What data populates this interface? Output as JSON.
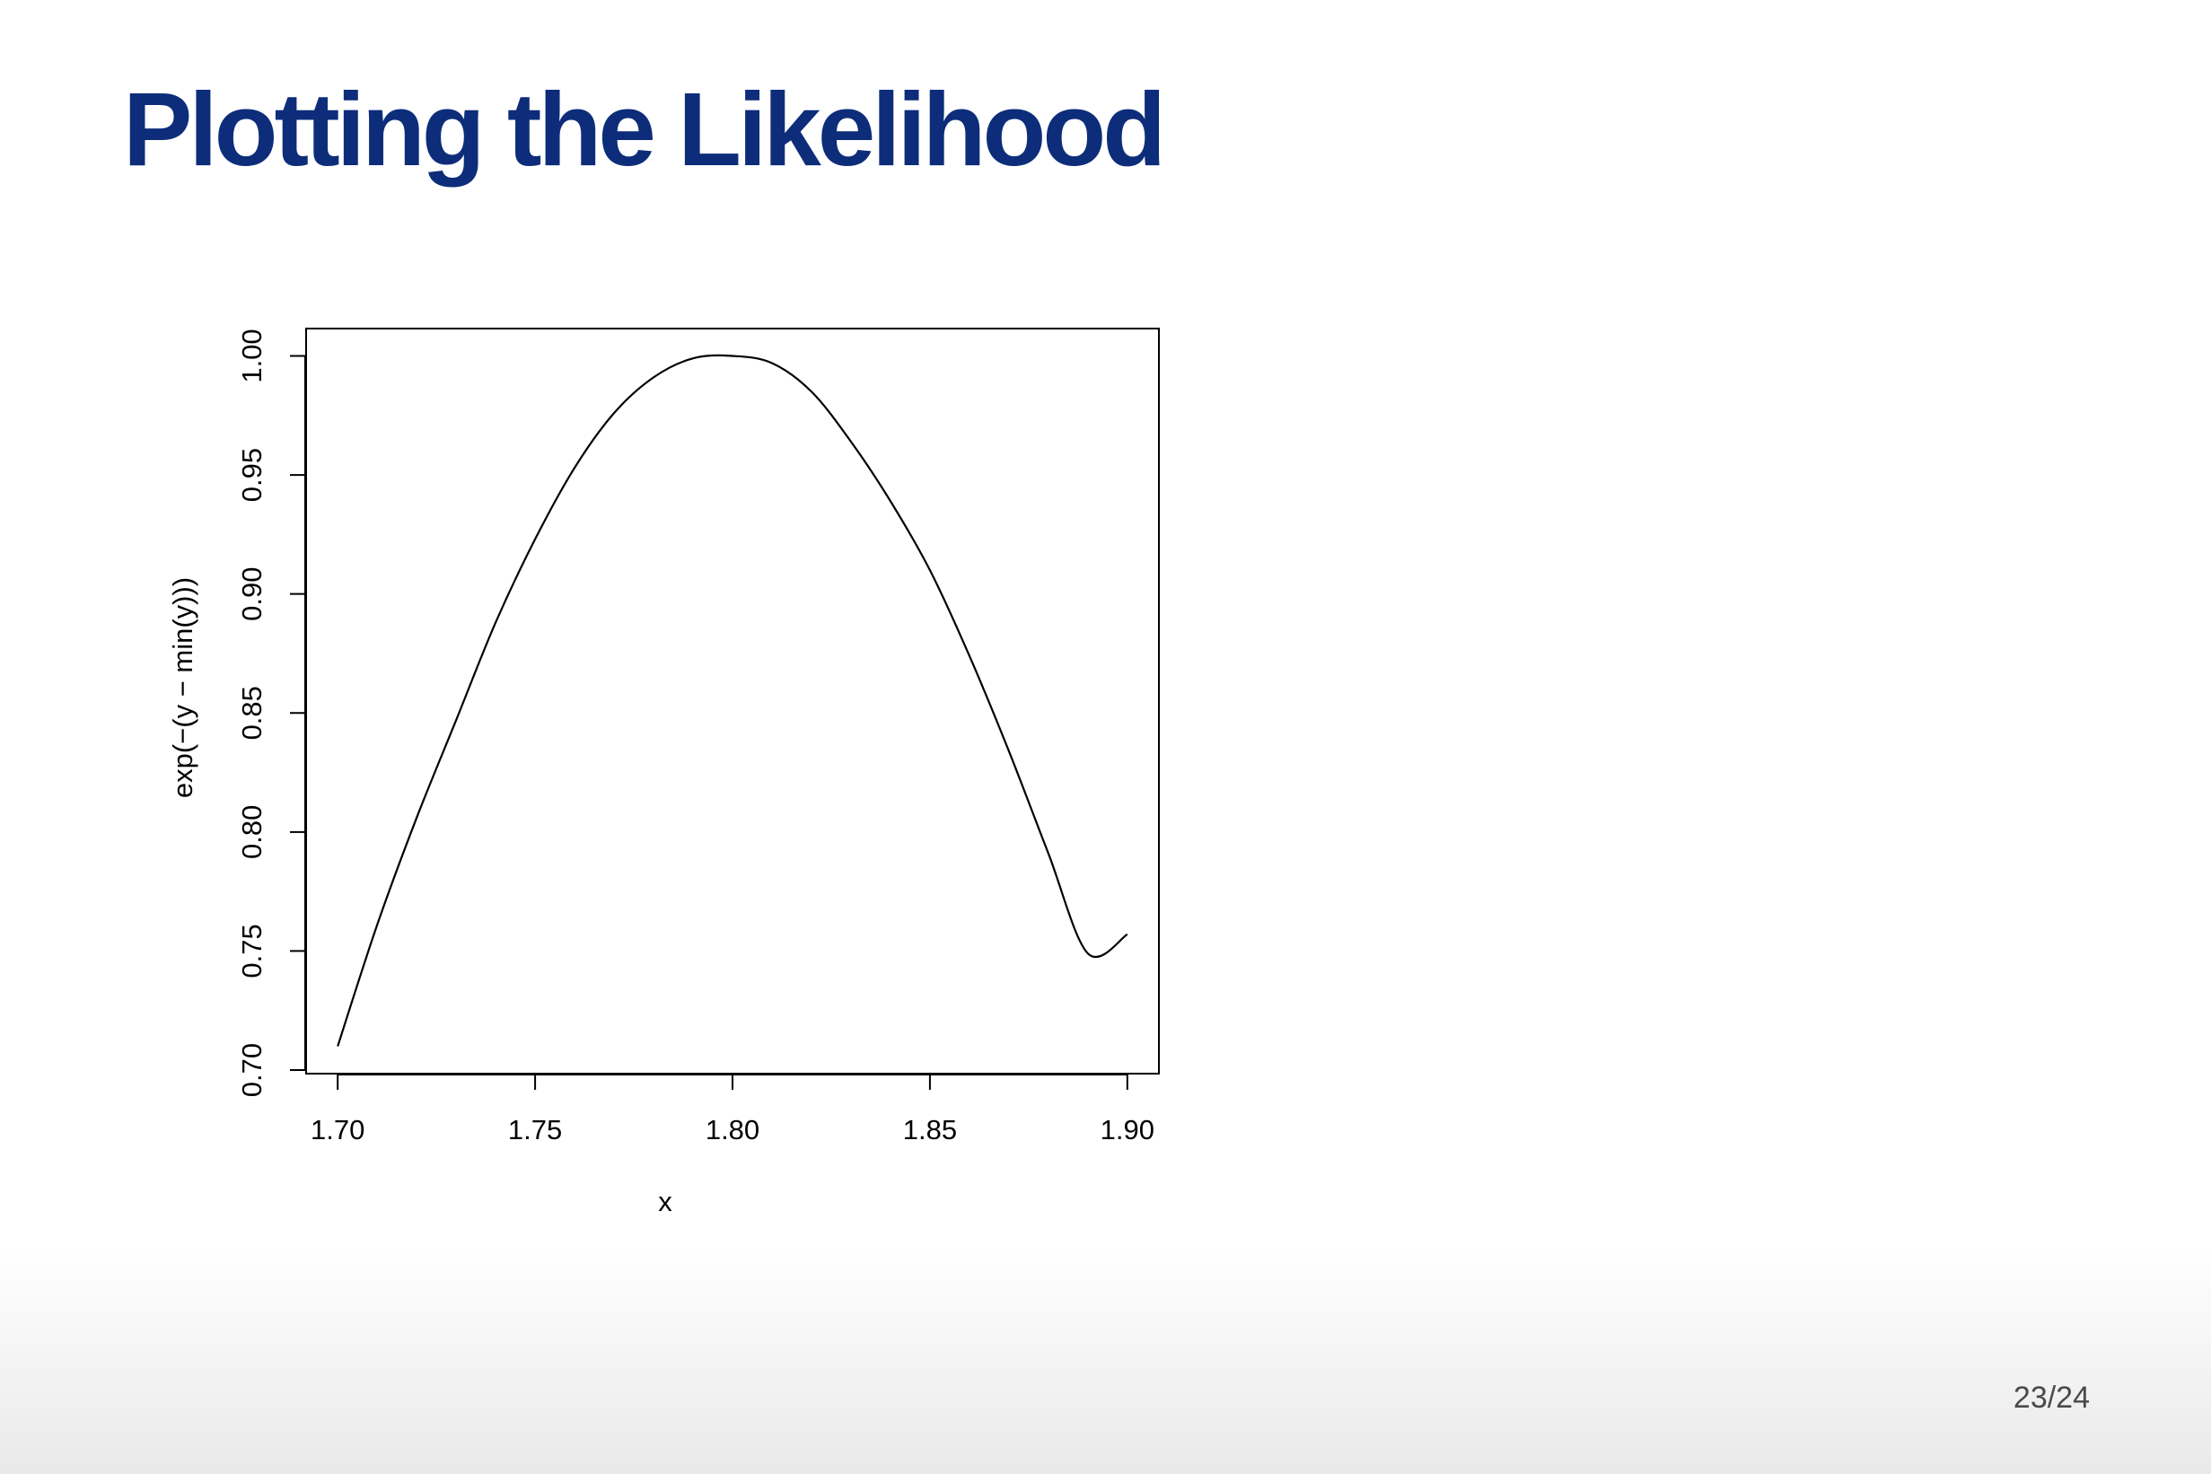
{
  "slide": {
    "title": "Plotting the Likelihood",
    "page_number": "23/24",
    "title_color": "#0d2d7a"
  },
  "chart_data": {
    "type": "line",
    "title": "",
    "xlabel": "x",
    "ylabel": "exp(−(y − min(y)))",
    "xlim": [
      1.692,
      1.908
    ],
    "ylim": [
      0.6985,
      1.0115
    ],
    "x_ticks": [
      "1.70",
      "1.75",
      "1.80",
      "1.85",
      "1.90"
    ],
    "y_ticks": [
      "0.70",
      "0.75",
      "0.80",
      "0.85",
      "0.90",
      "0.95",
      "1.00"
    ],
    "grid": false,
    "legend": "none",
    "series": [
      {
        "color": "#000000",
        "x": [
          1.7,
          1.71,
          1.72,
          1.73,
          1.74,
          1.75,
          1.76,
          1.77,
          1.78,
          1.79,
          1.8,
          1.81,
          1.82,
          1.83,
          1.84,
          1.85,
          1.86,
          1.87,
          1.88,
          1.89,
          1.9
        ],
        "y": [
          0.71,
          0.761,
          0.806,
          0.847,
          0.888,
          0.923,
          0.953,
          0.976,
          0.991,
          0.999,
          1.0,
          0.997,
          0.985,
          0.964,
          0.939,
          0.91,
          0.874,
          0.834,
          0.791,
          0.749,
          0.757
        ]
      }
    ]
  }
}
